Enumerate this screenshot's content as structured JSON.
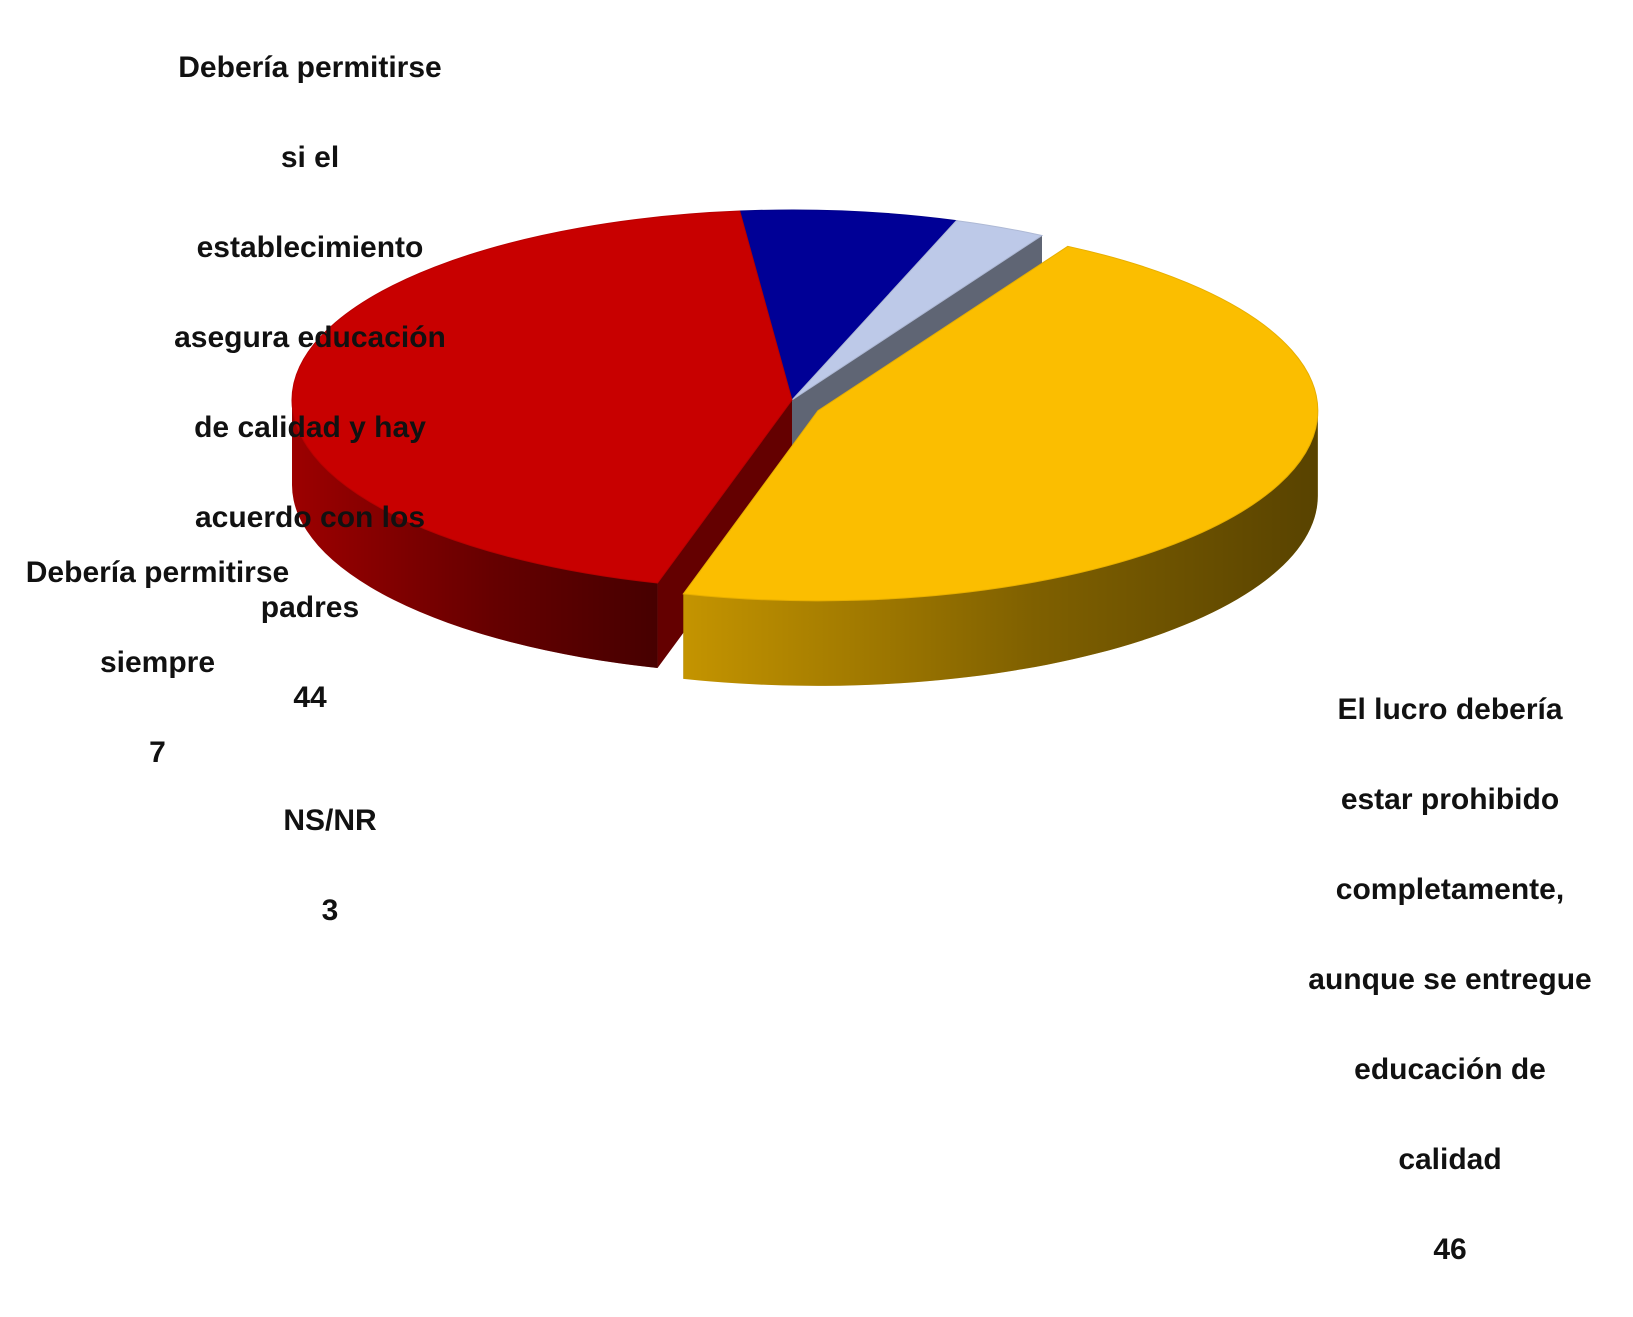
{
  "chart_data": {
    "type": "pie",
    "style": "3d",
    "slices": [
      {
        "label": "El lucro debería estar prohibido completamente, aunque se entregue educación de calidad",
        "value": 46,
        "color": "#FBBE00",
        "exploded": true
      },
      {
        "label": "Debería permitirse si el establecimiento asegura educación de calidad y hay acuerdo con los padres",
        "value": 44,
        "color": "#C80000",
        "exploded": false
      },
      {
        "label": "Debería permitirse siempre",
        "value": 7,
        "color": "#000096",
        "exploded": false
      },
      {
        "label": "NS/NR",
        "value": 3,
        "color": "#BDC9E8",
        "exploded": false
      }
    ],
    "label_lines": [
      [
        "El lucro debería",
        "estar prohibido",
        "completamente,",
        "aunque se entregue",
        "educación de",
        "calidad"
      ],
      [
        "Debería permitirse",
        "si el",
        "establecimiento",
        "asegura educación",
        "de calidad y hay",
        "acuerdo con los",
        "padres"
      ],
      [
        "Debería permitirse",
        "siempre"
      ],
      [
        "NS/NR"
      ]
    ],
    "legend": "none",
    "grid": false
  }
}
